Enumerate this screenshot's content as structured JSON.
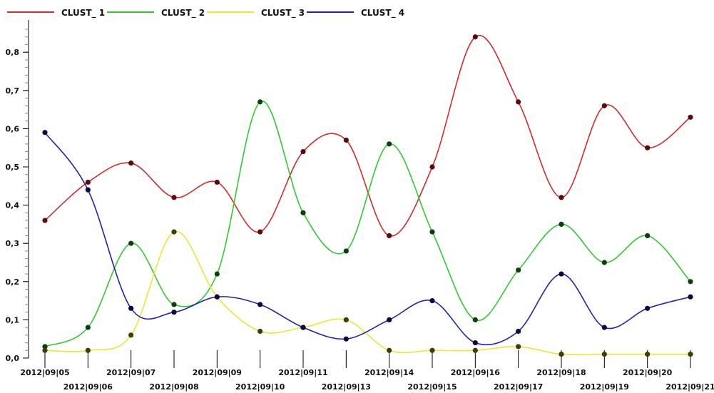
{
  "chart_data": {
    "type": "line",
    "title": "",
    "xlabel": "",
    "ylabel": "",
    "ylim": [
      0.0,
      0.87
    ],
    "yticks": [
      "0,0",
      "0,1",
      "0,2",
      "0,3",
      "0,4",
      "0,5",
      "0,6",
      "0,7",
      "0,8"
    ],
    "ytick_values": [
      0.0,
      0.1,
      0.2,
      0.3,
      0.4,
      0.5,
      0.6,
      0.7,
      0.8
    ],
    "grid": false,
    "smooth": true,
    "legend_position": "top-left",
    "categories": [
      "2012|09|05",
      "2012|09|06",
      "2012|09|07",
      "2012|09|08",
      "2012|09|09",
      "2012|09|10",
      "2012|09|11",
      "2012|09|13",
      "2012|09|14",
      "2012|09|15",
      "2012|09|16",
      "2012|09|17",
      "2012|09|18",
      "2012|09|19",
      "2012|09|20",
      "2012|09|21"
    ],
    "series": [
      {
        "name": "CLUST_ 1",
        "color": "#d42a2a",
        "values": [
          0.36,
          0.46,
          0.51,
          0.42,
          0.46,
          0.33,
          0.54,
          0.57,
          0.32,
          0.5,
          0.84,
          0.67,
          0.42,
          0.66,
          0.55,
          0.63
        ]
      },
      {
        "name": "CLUST_ 2",
        "color": "#2ecc2e",
        "values": [
          0.03,
          0.08,
          0.3,
          0.14,
          0.22,
          0.67,
          0.38,
          0.28,
          0.56,
          0.33,
          0.1,
          0.23,
          0.35,
          0.25,
          0.32,
          0.2
        ]
      },
      {
        "name": "CLUST_ 3",
        "color": "#e8e830",
        "values": [
          0.02,
          0.02,
          0.06,
          0.33,
          0.16,
          0.07,
          0.08,
          0.1,
          0.02,
          0.02,
          0.02,
          0.03,
          0.01,
          0.01,
          0.01,
          0.01
        ]
      },
      {
        "name": "CLUST_ 4",
        "color": "#2323b0",
        "values": [
          0.59,
          0.44,
          0.13,
          0.12,
          0.16,
          0.14,
          0.08,
          0.05,
          0.1,
          0.15,
          0.04,
          0.07,
          0.22,
          0.08,
          0.13,
          0.16
        ]
      }
    ]
  }
}
